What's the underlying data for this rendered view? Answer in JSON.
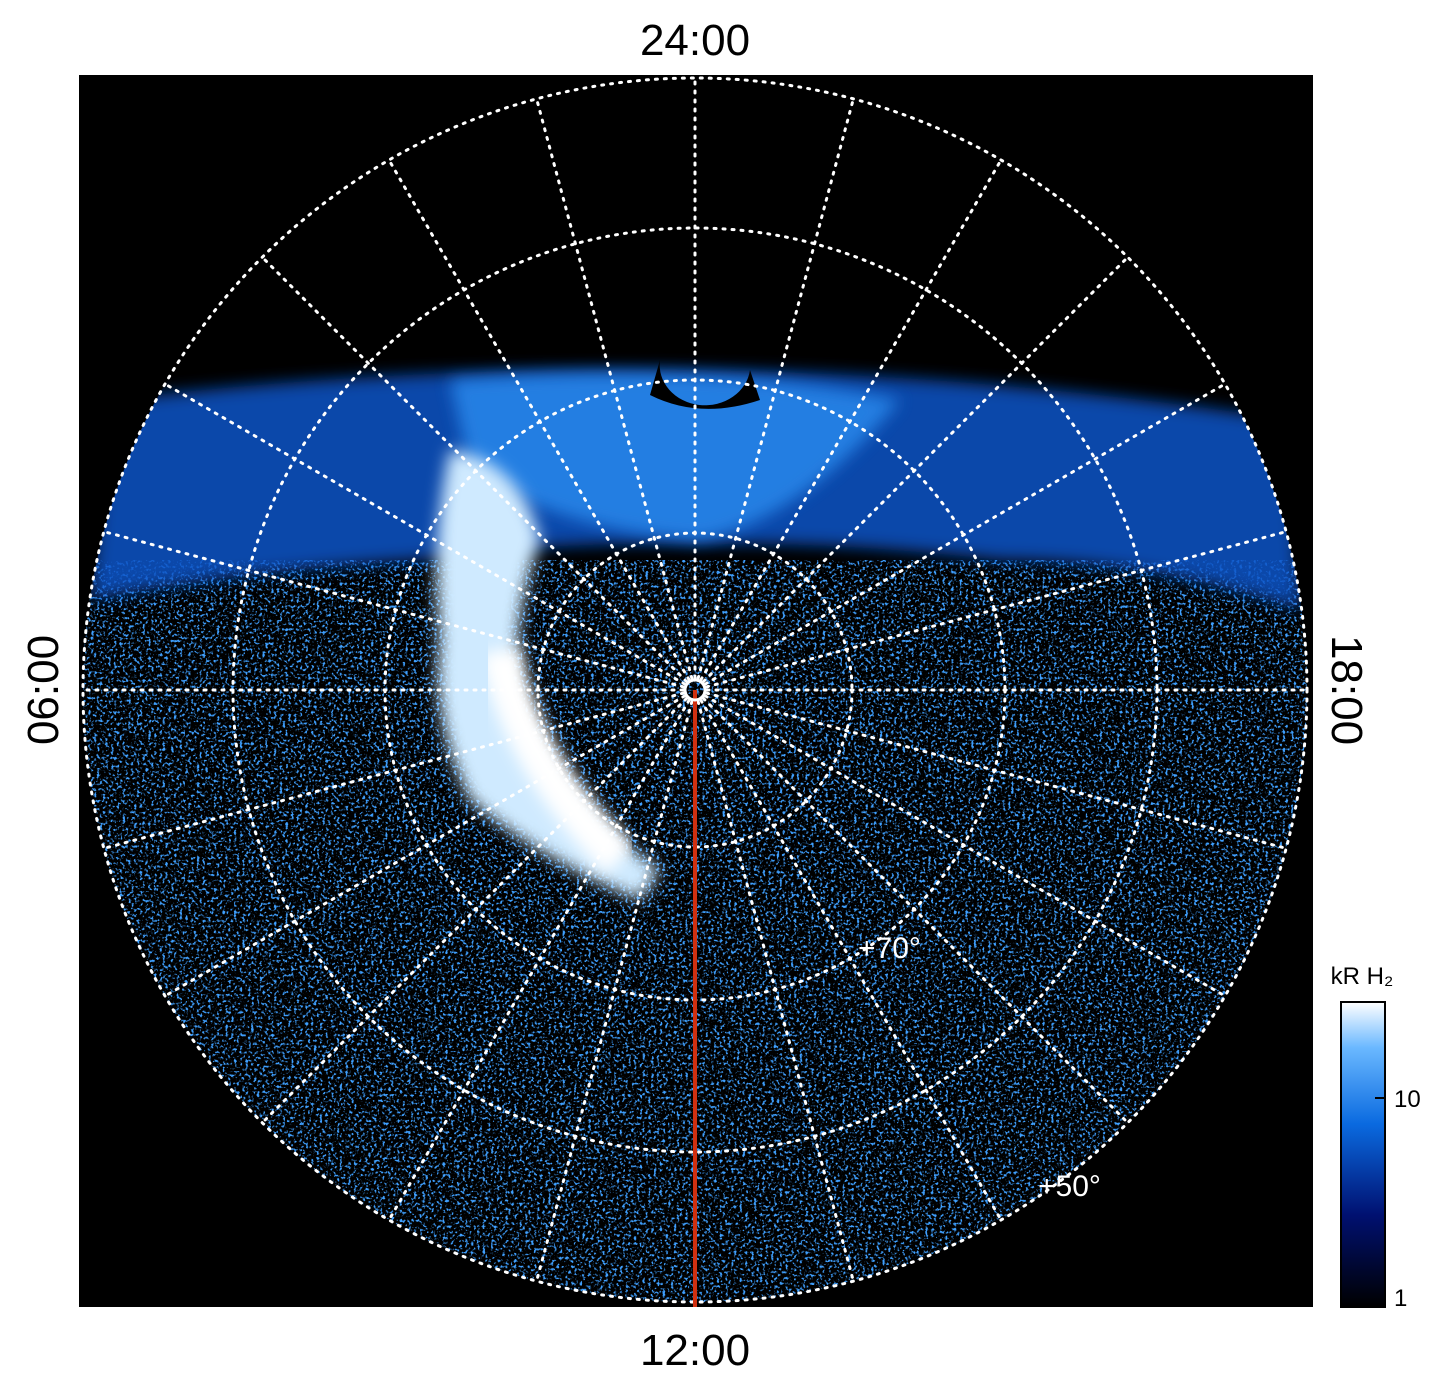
{
  "local_time_labels": {
    "top": "24:00",
    "bottom": "12:00",
    "left": "06:00",
    "right": "18:00"
  },
  "latitude_labels": [
    "+70°",
    "+50°"
  ],
  "colorbar": {
    "title": "kR H₂",
    "ticks": [
      "10",
      "1"
    ]
  }
}
